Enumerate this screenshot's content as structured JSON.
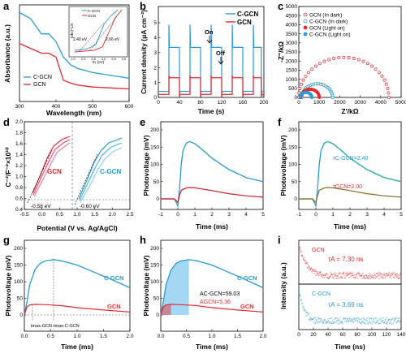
{
  "colors": {
    "cgcn": "#2a9ad8",
    "gcn": "#e8282e",
    "fit": "#2bb39b",
    "fit2": "#8a6a1e"
  },
  "chart_data": [
    {
      "id": "a",
      "type": "line",
      "panel_label": "a",
      "xlabel": "Wavelength (nm)",
      "ylabel": "Absorbance (a.u.)",
      "xlim": [
        300,
        600
      ],
      "xticks": [
        300,
        400,
        500,
        600
      ],
      "series": [
        {
          "name": "C-GCN",
          "x": [
            300,
            330,
            360,
            380,
            400,
            420,
            440,
            460,
            500,
            550,
            600
          ],
          "y": [
            0.92,
            0.86,
            0.7,
            0.7,
            0.62,
            0.46,
            0.38,
            0.34,
            0.3,
            0.27,
            0.24
          ]
        },
        {
          "name": "GCN",
          "x": [
            300,
            330,
            360,
            380,
            400,
            420,
            440,
            460,
            500,
            550,
            600
          ],
          "y": [
            0.6,
            0.55,
            0.5,
            0.5,
            0.46,
            0.22,
            0.19,
            0.17,
            0.15,
            0.14,
            0.13
          ]
        }
      ],
      "legend": [
        "C-GCN",
        "GCN"
      ],
      "inset": {
        "xlabel": "hν (eV)",
        "ylabel": "(αhν)^1/2",
        "xticks": [
          "2.0",
          "2.4",
          "2.8",
          "3.2",
          "3.6",
          "4.0"
        ],
        "legend": [
          "C-GCN",
          "GCN"
        ],
        "annotations": [
          "2.40 eV",
          "2.66 eV"
        ]
      }
    },
    {
      "id": "b",
      "type": "line",
      "panel_label": "b",
      "xlabel": "Time (s)",
      "ylabel": "Current density (μA cm⁻²)",
      "xlim": [
        0,
        200
      ],
      "ylim": [
        0,
        6
      ],
      "xticks": [
        0,
        40,
        80,
        120,
        160,
        200
      ],
      "yticks": [
        0,
        1,
        2,
        3,
        4,
        5
      ],
      "on_periods": [
        [
          20,
          40
        ],
        [
          60,
          80
        ],
        [
          100,
          120
        ],
        [
          140,
          160
        ],
        [
          180,
          195
        ]
      ],
      "series": [
        {
          "name": "C-GCN",
          "on_level": 3.3,
          "spike": 4.8,
          "off_level": 0.4
        },
        {
          "name": "GCN",
          "on_level": 1.3,
          "spike": 1.45,
          "off_level": 0.2
        }
      ],
      "annotations": [
        "On",
        "Off"
      ],
      "legend": [
        "C-GCN",
        "GCN"
      ]
    },
    {
      "id": "c",
      "type": "scatter",
      "panel_label": "c",
      "xlabel": "Z'/kΩ",
      "ylabel": "-Z''/kΩ",
      "xlim": [
        0,
        5000
      ],
      "ylim": [
        0,
        5000
      ],
      "xticks": [
        0,
        1000,
        2000,
        3000,
        4000,
        5000
      ],
      "yticks": [
        0,
        500,
        1000,
        1500,
        2000,
        2500,
        3000,
        3500,
        4000,
        4500,
        5000
      ],
      "series": [
        {
          "name": "GCN (In dark)",
          "center": 2200,
          "radius": 2200,
          "filled": false
        },
        {
          "name": "C-GCN (In dark)",
          "center": 900,
          "radius": 750,
          "filled": false
        },
        {
          "name": "GCN (Light on)",
          "center": 550,
          "radius": 450,
          "filled": true
        },
        {
          "name": "C-GCN (Light on)",
          "center": 350,
          "radius": 280,
          "filled": true
        }
      ]
    },
    {
      "id": "d",
      "type": "line",
      "panel_label": "d",
      "xlabel": "Potential (V vs. Ag/AgCl)",
      "ylabel": "C⁻²/F⁻²×10¹⁰",
      "xlim": [
        -0.5,
        2.5
      ],
      "ylim": [
        0.4,
        2.0
      ],
      "xticks": [
        "-0.5",
        "0.0",
        "0.5",
        "1.0",
        "1.5",
        "2.0",
        "2.5"
      ],
      "yticks": [
        "0.4",
        "0.6",
        "0.8",
        "1.0",
        "1.2",
        "1.4",
        "1.6",
        "1.8",
        "2.0"
      ],
      "annotations": [
        "GCN",
        "C-GCN",
        "-0.58 eV",
        "-0.60 eV"
      ]
    },
    {
      "id": "e",
      "type": "line",
      "panel_label": "e",
      "xlabel": "Time (ms)",
      "ylabel": "Photovoltage (mV)",
      "xlim": [
        -1,
        5
      ],
      "ylim": [
        -25,
        200
      ],
      "xticks": [
        "-1",
        "0",
        "1",
        "2",
        "3",
        "4",
        "5"
      ],
      "yticks": [
        "0",
        "50",
        "100",
        "150",
        "200"
      ],
      "series": [
        {
          "name": "C-GCN",
          "x": [
            -1,
            -0.2,
            0,
            0.1,
            0.2,
            0.3,
            0.5,
            0.7,
            1.0,
            1.5,
            2,
            3,
            4,
            5
          ],
          "y": [
            0,
            0,
            -20,
            30,
            100,
            140,
            162,
            166,
            160,
            140,
            118,
            85,
            62,
            50
          ]
        },
        {
          "name": "GCN",
          "x": [
            -1,
            -0.2,
            0,
            0.1,
            0.2,
            0.5,
            0.7,
            1.0,
            2,
            3,
            4,
            5
          ],
          "y": [
            0,
            0,
            -10,
            10,
            25,
            32,
            33,
            32,
            24,
            15,
            9,
            5
          ]
        }
      ]
    },
    {
      "id": "f",
      "type": "line",
      "panel_label": "f",
      "xlabel": "Time (ms)",
      "ylabel": "Photovoltage (mV)",
      "xlim": [
        -1,
        5
      ],
      "ylim": [
        -25,
        200
      ],
      "xticks": [
        "-1",
        "0",
        "1",
        "2",
        "3",
        "4",
        "5"
      ],
      "yticks": [
        "0",
        "50",
        "100",
        "150",
        "200"
      ],
      "annotations": [
        "τC-GCN=2.40",
        "τGCN=2.00"
      ]
    },
    {
      "id": "g",
      "type": "line",
      "panel_label": "g",
      "xlabel": "Time (ms)",
      "ylabel": "Photovoltage (mV)",
      "xlim": [
        0,
        2
      ],
      "ylim": [
        -25,
        200
      ],
      "xticks": [
        "0.0",
        "0.5",
        "1.0",
        "1.5",
        "2.0"
      ],
      "yticks": [
        "0",
        "50",
        "100",
        "150",
        "200"
      ],
      "series": [
        {
          "name": "C-GCN",
          "x": [
            0,
            0.05,
            0.1,
            0.2,
            0.3,
            0.4,
            0.55,
            0.7,
            1.0,
            1.3,
            1.6,
            2.0
          ],
          "y": [
            0,
            40,
            90,
            135,
            155,
            163,
            166,
            163,
            150,
            130,
            110,
            82
          ]
        },
        {
          "name": "GCN",
          "x": [
            0,
            0.05,
            0.1,
            0.2,
            0.4,
            0.7,
            1.0,
            1.5,
            2.0
          ],
          "y": [
            0,
            25,
            30,
            32,
            31,
            28,
            22,
            15,
            9
          ]
        }
      ],
      "labels": [
        "C-GCN",
        "GCN"
      ],
      "annotations": [
        "tmax-GCN",
        "tmax-C-GCN"
      ]
    },
    {
      "id": "h",
      "type": "area",
      "panel_label": "h",
      "xlabel": "Time (ms)",
      "ylabel": "Photovoltage (mV)",
      "xlim": [
        0,
        2
      ],
      "ylim": [
        -25,
        200
      ],
      "xticks": [
        "0.0",
        "0.5",
        "1.0",
        "1.5",
        "2.0"
      ],
      "yticks": [
        "0",
        "50",
        "100",
        "150",
        "200"
      ],
      "labels": [
        "C-GCN",
        "GCN"
      ],
      "annotations": [
        "AC-GCN=59.03",
        "AGCN=5.36"
      ]
    },
    {
      "id": "i",
      "type": "scatter",
      "panel_label": "i",
      "xlabel": "Time (ns)",
      "ylabel": "Intensity (a.u.)",
      "xlim": [
        0,
        140
      ],
      "xticks": [
        "0",
        "20",
        "40",
        "60",
        "80",
        "100",
        "120",
        "140"
      ],
      "panels": [
        {
          "name": "GCN",
          "tau": "τA = 7.30 ns"
        },
        {
          "name": "C-GCN",
          "tau": "τA = 3.69 ns"
        }
      ]
    }
  ]
}
